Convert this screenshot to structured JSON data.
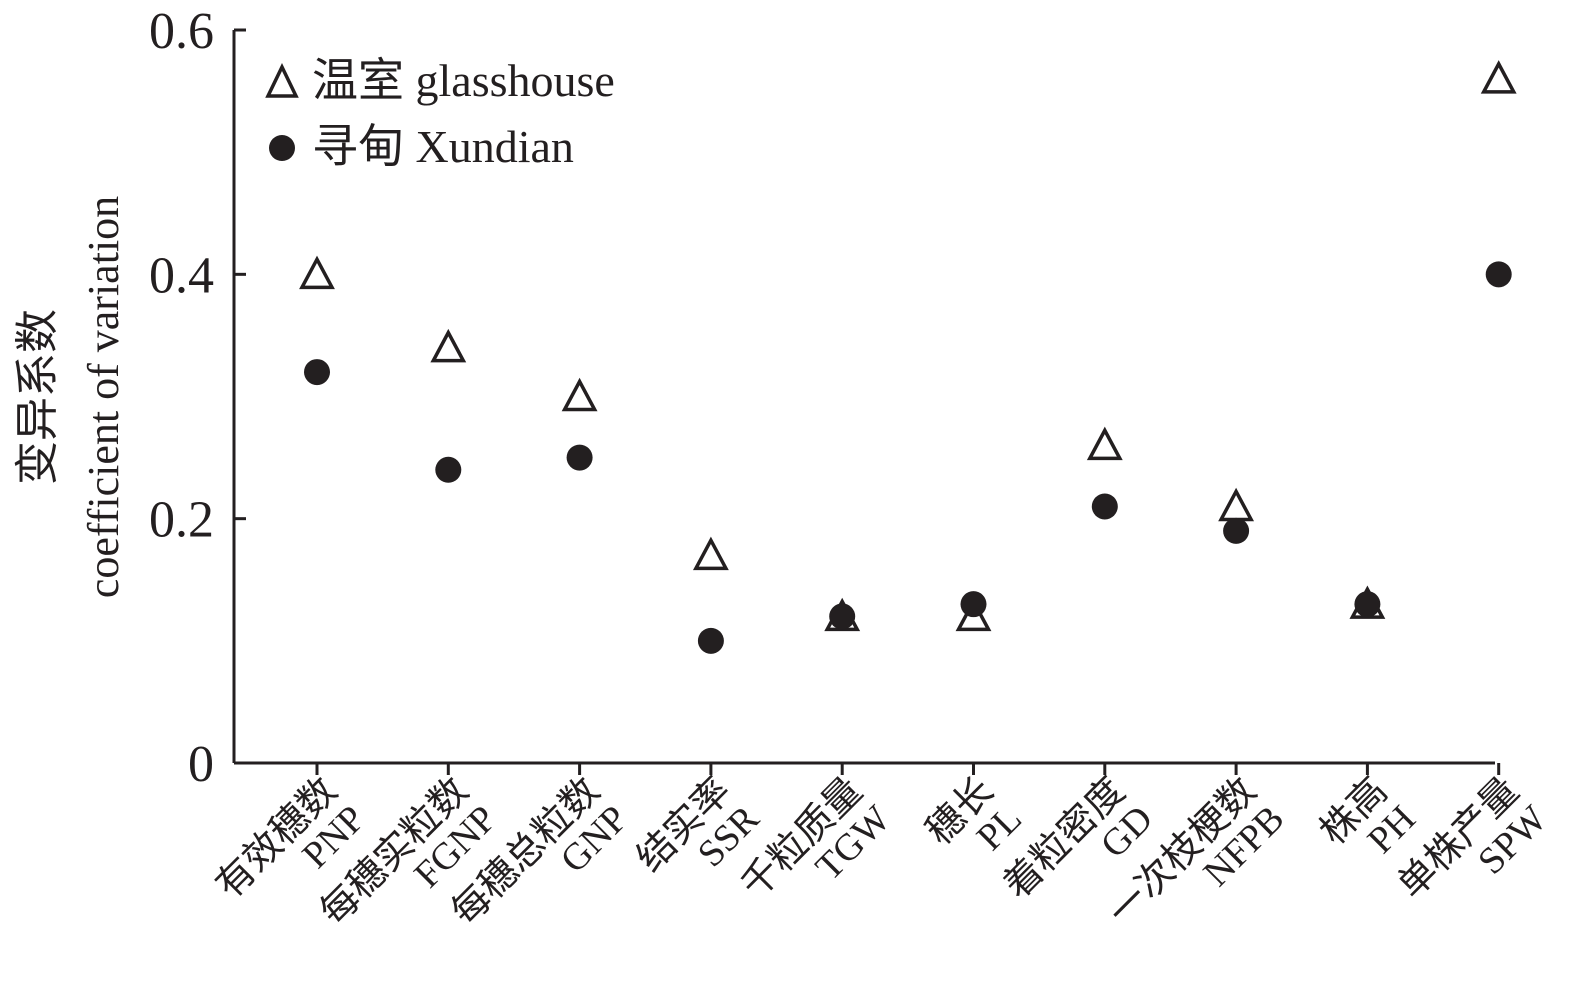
{
  "chart_data": {
    "type": "scatter",
    "title": "",
    "ylabel_line1": "变异系数",
    "ylabel_line2": "coefficient of variation",
    "ylim": [
      0,
      0.6
    ],
    "yticks": [
      "0",
      "0.2",
      "0.4",
      "0.6"
    ],
    "ytick_values": [
      0,
      0.2,
      0.4,
      0.6
    ],
    "categories": [
      {
        "cn": "有效穗数",
        "en": "PNP"
      },
      {
        "cn": "每穗实粒数",
        "en": "FGNP"
      },
      {
        "cn": "每穗总粒数",
        "en": "GNP"
      },
      {
        "cn": "结实率",
        "en": "SSR"
      },
      {
        "cn": "千粒质量",
        "en": "TGW"
      },
      {
        "cn": "穗长",
        "en": "PL"
      },
      {
        "cn": "着粒密度",
        "en": "GD"
      },
      {
        "cn": "一次枝梗数",
        "en": "NFPB"
      },
      {
        "cn": "株高",
        "en": "PH"
      },
      {
        "cn": "单株产量",
        "en": "SPW"
      }
    ],
    "series": [
      {
        "name": "温室 glasshouse",
        "marker": "triangle",
        "values": [
          0.4,
          0.34,
          0.3,
          0.17,
          0.12,
          0.12,
          0.26,
          0.21,
          0.13,
          0.56
        ]
      },
      {
        "name": "寻甸 Xundian",
        "marker": "circle",
        "values": [
          0.32,
          0.24,
          0.25,
          0.1,
          0.12,
          0.13,
          0.21,
          0.19,
          0.13,
          0.4
        ]
      }
    ],
    "legend_position": "top-left",
    "grid": false,
    "colors": {
      "ink": "#231f20",
      "background": "#ffffff"
    }
  }
}
